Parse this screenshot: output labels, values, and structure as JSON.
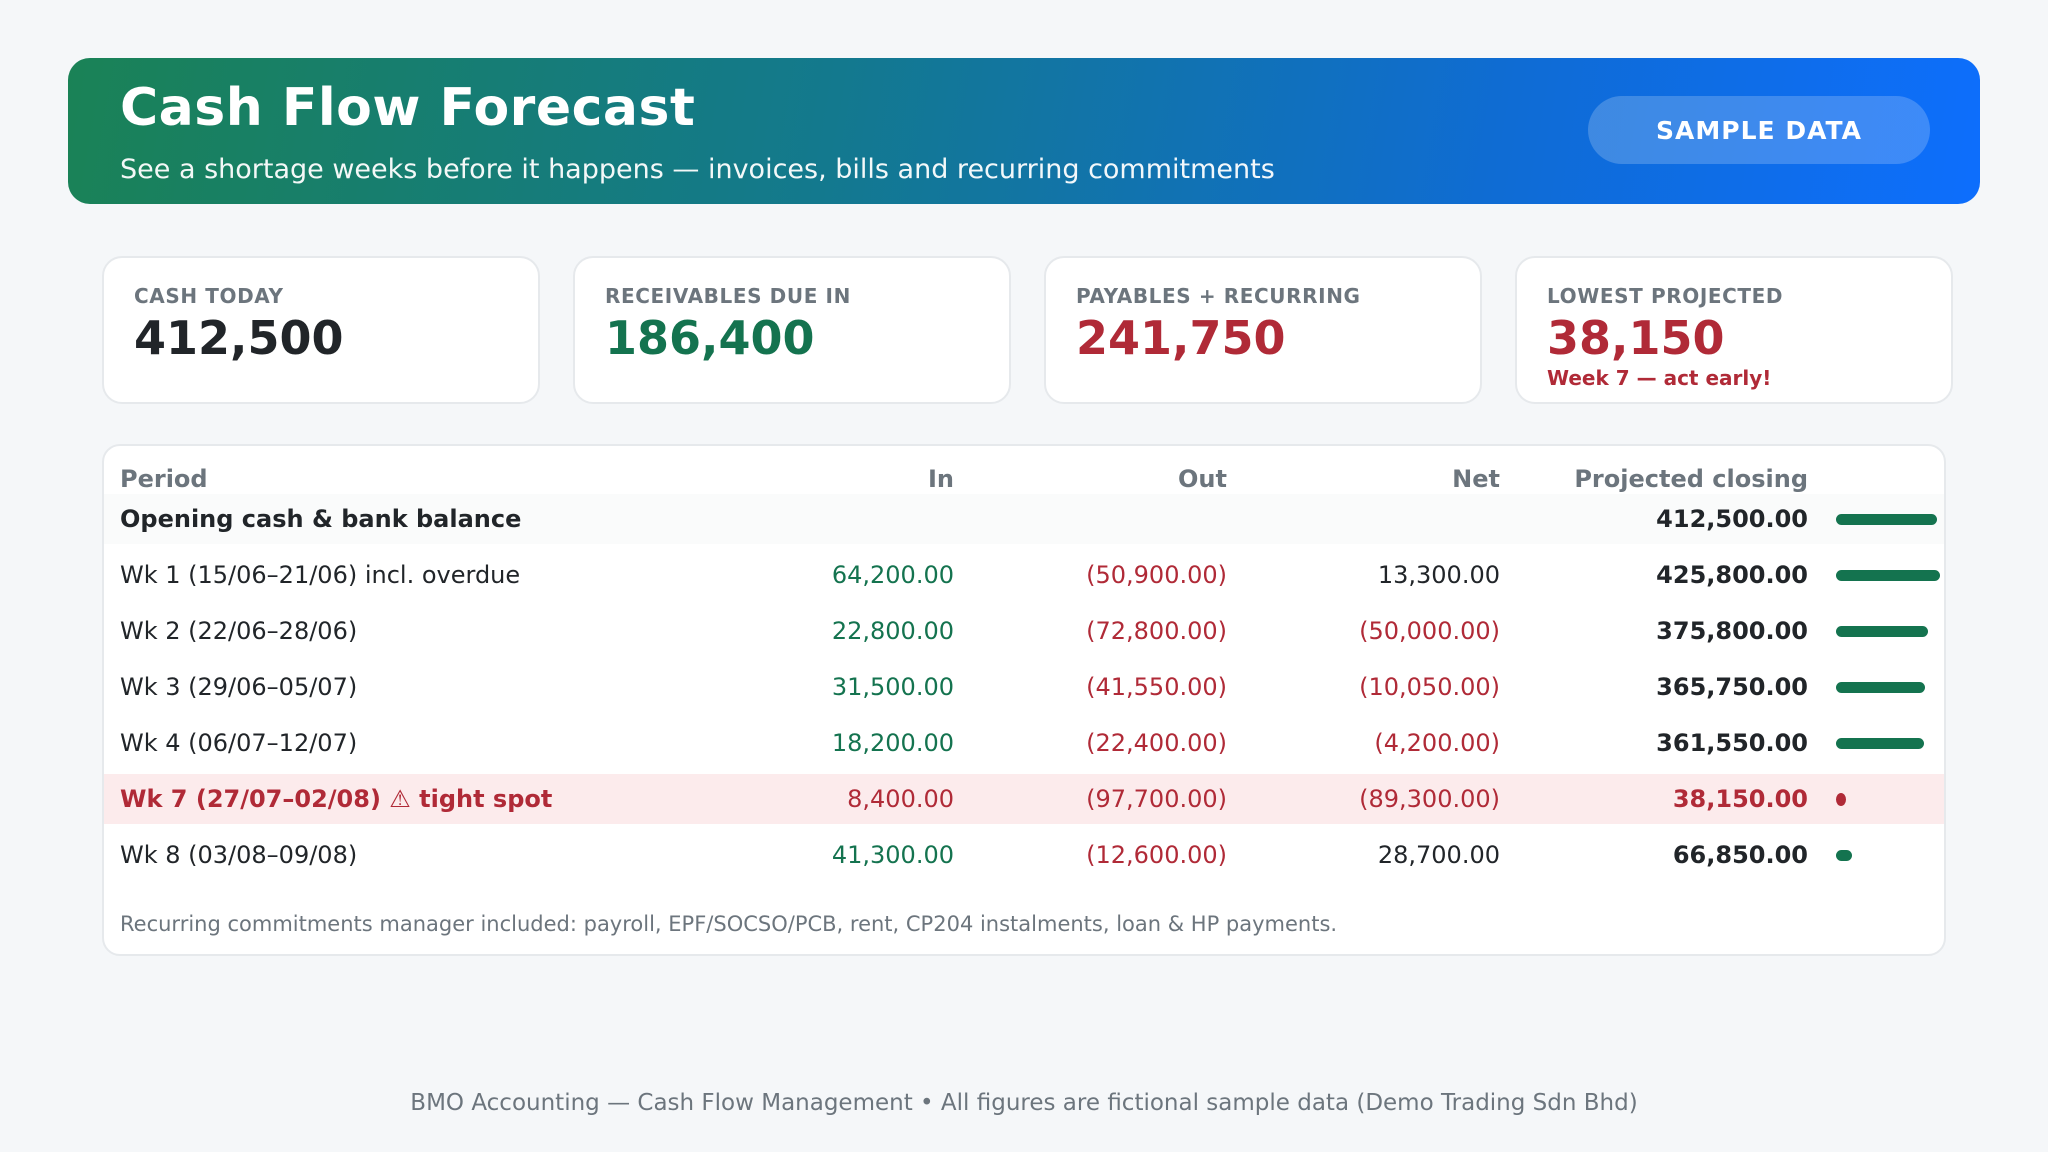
{
  "header": {
    "title": "Cash Flow Forecast",
    "subtitle": "See a shortage weeks before it happens — invoices, bills and recurring commitments",
    "badge": "SAMPLE DATA"
  },
  "kpis": [
    {
      "label": "CASH TODAY",
      "value": "412,500",
      "tone": "dark"
    },
    {
      "label": "RECEIVABLES DUE IN",
      "value": "186,400",
      "tone": "green"
    },
    {
      "label": "PAYABLES + RECURRING",
      "value": "241,750",
      "tone": "red"
    },
    {
      "label": "LOWEST PROJECTED",
      "value": "38,150",
      "tone": "red",
      "note": "Week 7 — act early!"
    }
  ],
  "table": {
    "columns": [
      "Period",
      "In",
      "Out",
      "Net",
      "Projected closing"
    ],
    "bar_max": 425800,
    "rows": [
      {
        "period": "Opening cash & bank balance",
        "in": "",
        "out": "",
        "net": "",
        "closing": "412,500.00",
        "closing_value": 412500,
        "kind": "opening"
      },
      {
        "period": "Wk 1 (15/06–21/06) incl. overdue",
        "in": "64,200.00",
        "out": "(50,900.00)",
        "net": "13,300.00",
        "net_negative": false,
        "closing": "425,800.00",
        "closing_value": 425800,
        "kind": "normal"
      },
      {
        "period": "Wk 2 (22/06–28/06)",
        "in": "22,800.00",
        "out": "(72,800.00)",
        "net": "(50,000.00)",
        "net_negative": true,
        "closing": "375,800.00",
        "closing_value": 375800,
        "kind": "normal"
      },
      {
        "period": "Wk 3 (29/06–05/07)",
        "in": "31,500.00",
        "out": "(41,550.00)",
        "net": "(10,050.00)",
        "net_negative": true,
        "closing": "365,750.00",
        "closing_value": 365750,
        "kind": "normal"
      },
      {
        "period": "Wk 4 (06/07–12/07)",
        "in": "18,200.00",
        "out": "(22,400.00)",
        "net": "(4,200.00)",
        "net_negative": true,
        "closing": "361,550.00",
        "closing_value": 361550,
        "kind": "normal"
      },
      {
        "period": "Wk 7 (27/07–02/08) ⚠ tight spot",
        "in": "8,400.00",
        "out": "(97,700.00)",
        "net": "(89,300.00)",
        "net_negative": true,
        "closing": "38,150.00",
        "closing_value": 38150,
        "kind": "alert"
      },
      {
        "period": "Wk 8 (03/08–09/08)",
        "in": "41,300.00",
        "out": "(12,600.00)",
        "net": "28,700.00",
        "net_negative": false,
        "closing": "66,850.00",
        "closing_value": 66850,
        "kind": "normal"
      }
    ],
    "note": "Recurring commitments manager included: payroll, EPF/SOCSO/PCB, rent, CP204 instalments, loan & HP payments."
  },
  "footer": "BMO Accounting — Cash Flow Management • All figures are fictional sample data (Demo Trading Sdn Bhd)",
  "colors": {
    "green": "#14734f",
    "red": "#b02a37",
    "accent_start": "#1a8256",
    "accent_end": "#0d6efd"
  }
}
